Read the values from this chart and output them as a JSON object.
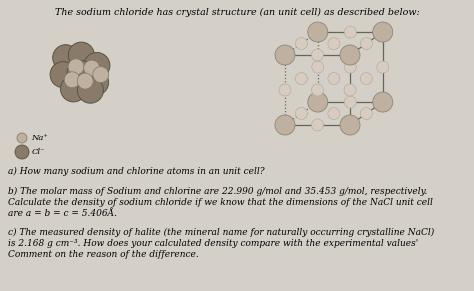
{
  "background_color": "#d4d0c8",
  "title_text": "The sodium chloride has crystal structure (an unit cell) as described below:",
  "title_fontsize": 6.8,
  "question_a": "a) How many sodium and chlorine atoms in an unit cell?",
  "question_b_line1": "b) The molar mass of Sodium and chlorine are 22.990 g/mol and 35.453 g/mol, respectively.",
  "question_b_line2": "Calculate the density of sodium chloride if we know that the dimensions of the NaCl unit cell",
  "question_b_line3": "are a = b = c = 5.406Å.",
  "question_c_line1": "c) The measured density of halite (the mineral name for naturally occurring crystalline NaCl)",
  "question_c_line2": "is 2.168 g cm⁻³. How does your calculated density compare with the experimental values'",
  "question_c_line3": "Comment on the reason of the difference.",
  "legend_na": "Na⁺",
  "legend_cl": "Cl⁻",
  "text_fontsize": 6.5,
  "legend_fontsize": 6.0,
  "cluster_color_large": "#8a7a6a",
  "cluster_color_small": "#c0b0a0",
  "cube_sphere_large_color": "#c0b0a0",
  "cube_sphere_small_color": "#d8ccc0",
  "edge_color": "#666655"
}
